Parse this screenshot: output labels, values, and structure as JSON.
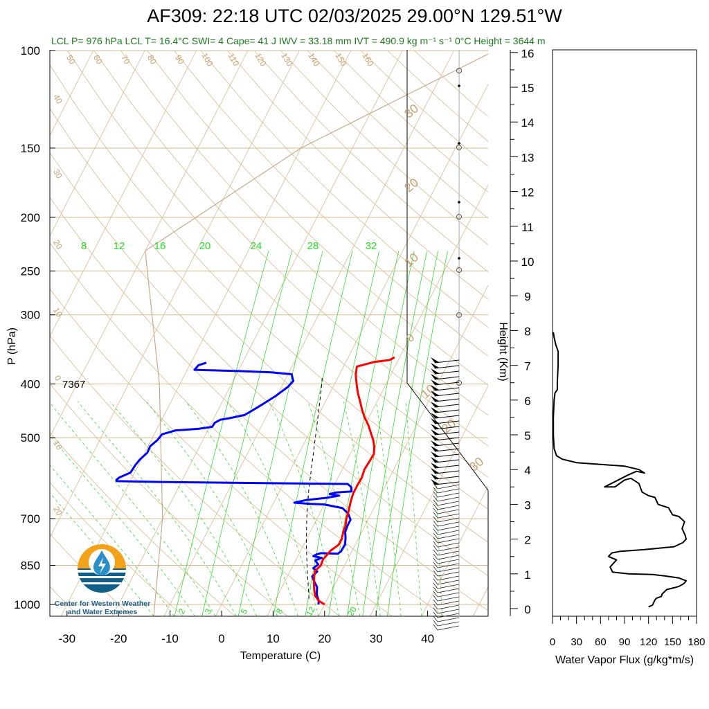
{
  "header": {
    "title": "AF309: 22:18 UTC 02/03/2025  29.00°N 129.51°W",
    "subtitle": "LCL P= 976 hPa  LCL T= 16.4°C  SWI= 4  Cape= 41 J  IWV = 33.18 mm  IVT = 490.9 kg m⁻¹ s⁻¹  0°C Height = 3644 m"
  },
  "logo": {
    "name": "Center for Western Weather and Water Extremes",
    "line1": "Center for Western Weather",
    "line2": "and Water Extremes"
  },
  "colors": {
    "temperature": "#ff0000",
    "dewpoint": "#0000ff",
    "isobar": "#d9b98f",
    "dry_adiabat": "#d9b98f",
    "mixing_ratio": "#33dd33",
    "label_green": "#22dd22",
    "label_tan": "#c8a070"
  },
  "chart_data": [
    {
      "type": "line",
      "name": "skew-t",
      "xlabel": "Temperature (C)",
      "ylabel": "P (hPa)",
      "x_ticks": [
        -30,
        -20,
        -10,
        0,
        10,
        20,
        30,
        40
      ],
      "y_ticks": [
        100,
        150,
        200,
        250,
        300,
        400,
        500,
        700,
        850,
        1000
      ],
      "xlim": [
        -33,
        51
      ],
      "ylim": [
        1050,
        100
      ],
      "y_scale": "log",
      "annotation": "7367",
      "mixing_ratio_labels_top": [
        "8",
        "12",
        "16",
        "20",
        "24",
        "28",
        "32"
      ],
      "mixing_ratio_labels_bottom": [
        "2",
        "3",
        "5",
        "8",
        "12",
        "20"
      ],
      "dry_adiabat_labels_top": [
        "50",
        "60",
        "70",
        "80",
        "90",
        "100",
        "110",
        "120",
        "130",
        "140",
        "150",
        "160"
      ],
      "dry_adiabat_labels_left": [
        "40",
        "30",
        "20",
        "10",
        "0",
        "10",
        "20"
      ],
      "isotherm_labels_right": [
        "30",
        "20",
        "10",
        "0",
        "10",
        "20",
        "30"
      ],
      "series": [
        {
          "name": "temperature",
          "points": [
            [
              20.0,
              1000
            ],
            [
              18.5,
              985
            ],
            [
              17.3,
              965
            ],
            [
              16.5,
              940
            ],
            [
              15.8,
              915
            ],
            [
              15.2,
              890
            ],
            [
              14.8,
              870
            ],
            [
              15.4,
              850
            ],
            [
              15.2,
              830
            ],
            [
              15.8,
              800
            ],
            [
              16.8,
              780
            ],
            [
              16.8,
              760
            ],
            [
              16.4,
              740
            ],
            [
              16.2,
              720
            ],
            [
              15.7,
              700
            ],
            [
              15.4,
              680
            ],
            [
              14.8,
              650
            ],
            [
              14.5,
              630
            ],
            [
              14.5,
              610
            ],
            [
              14.6,
              590
            ],
            [
              14.3,
              570
            ],
            [
              14.5,
              550
            ],
            [
              14.6,
              535
            ],
            [
              14.0,
              520
            ],
            [
              13.1,
              505
            ],
            [
              11.9,
              490
            ],
            [
              10.7,
              475
            ],
            [
              9.2,
              460
            ],
            [
              7.9,
              445
            ],
            [
              6.7,
              430
            ],
            [
              5.4,
              415
            ],
            [
              4.3,
              400
            ],
            [
              3.2,
              385
            ],
            [
              2.6,
              372
            ],
            [
              5.5,
              365
            ],
            [
              8.3,
              362
            ],
            [
              9.0,
              358
            ]
          ]
        },
        {
          "name": "dewpoint",
          "points": [
            [
              18.8,
              1000
            ],
            [
              18.5,
              985
            ],
            [
              17.5,
              960
            ],
            [
              16.8,
              930
            ],
            [
              15.5,
              905
            ],
            [
              14.8,
              890
            ],
            [
              15.3,
              872
            ],
            [
              14.2,
              860
            ],
            [
              14.8,
              847
            ],
            [
              13.8,
              833
            ],
            [
              14.8,
              824
            ],
            [
              13.0,
              818
            ],
            [
              13.5,
              812
            ],
            [
              14.2,
              808
            ],
            [
              17.5,
              810
            ],
            [
              17.9,
              802
            ],
            [
              18.0,
              780
            ],
            [
              17.5,
              760
            ],
            [
              16.8,
              740
            ],
            [
              16.6,
              720
            ],
            [
              16.6,
              703
            ],
            [
              15.5,
              685
            ],
            [
              13.9,
              670
            ],
            [
              10.0,
              660
            ],
            [
              7.0,
              658
            ],
            [
              4.0,
              655
            ],
            [
              6.0,
              648
            ],
            [
              9.8,
              642
            ],
            [
              12.0,
              636
            ],
            [
              10.0,
              632
            ],
            [
              11.0,
              628
            ],
            [
              14.0,
              625
            ],
            [
              13.5,
              614
            ],
            [
              12.5,
              606
            ],
            [
              -10.0,
              603
            ],
            [
              -24.0,
              601
            ],
            [
              -32.6,
              599
            ],
            [
              -32.8,
              596
            ],
            [
              -32.5,
              590
            ],
            [
              -30.8,
              578
            ],
            [
              -30.6,
              560
            ],
            [
              -30.3,
              548
            ],
            [
              -29.5,
              532
            ],
            [
              -29.6,
              518
            ],
            [
              -28.8,
              505
            ],
            [
              -28.5,
              493
            ],
            [
              -26.2,
              485
            ],
            [
              -22.0,
              482
            ],
            [
              -19.5,
              478
            ],
            [
              -19.4,
              470
            ],
            [
              -18.6,
              464
            ],
            [
              -17.0,
              461
            ],
            [
              -14.4,
              455
            ],
            [
              -13.5,
              448
            ],
            [
              -12.3,
              438
            ],
            [
              -10.2,
              420
            ],
            [
              -8.8,
              405
            ],
            [
              -8.3,
              395
            ],
            [
              -9.3,
              384
            ],
            [
              -13.5,
              381
            ],
            [
              -20.0,
              379
            ],
            [
              -28.6,
              377
            ],
            [
              -28.3,
              370
            ],
            [
              -27.0,
              366
            ]
          ]
        },
        {
          "name": "parcel",
          "points": [
            [
              16.4,
              976
            ],
            [
              13.0,
              860
            ],
            [
              10.5,
              780
            ],
            [
              8.0,
              700
            ],
            [
              5.5,
              620
            ],
            [
              3.0,
              540
            ],
            [
              0.5,
              470
            ],
            [
              -2.0,
              410
            ],
            [
              -3.0,
              390
            ]
          ]
        }
      ]
    },
    {
      "type": "line",
      "name": "water-vapor-flux-profile",
      "xlabel": "Water Vapor Flux (g/kg*m/s)",
      "ylabel": "Height (Km)",
      "x_ticks": [
        0,
        30,
        60,
        90,
        120,
        150,
        180
      ],
      "y_ticks": [
        0,
        1,
        2,
        3,
        4,
        5,
        6,
        7,
        8,
        9,
        10,
        11,
        12,
        13,
        14,
        15,
        16
      ],
      "xlim": [
        0,
        180
      ],
      "ylim": [
        0,
        16
      ],
      "series": [
        {
          "name": "water vapor flux",
          "points": [
            [
              120,
              0.05
            ],
            [
              125,
              0.1
            ],
            [
              128,
              0.25
            ],
            [
              130,
              0.3
            ],
            [
              136,
              0.35
            ],
            [
              137,
              0.42
            ],
            [
              143,
              0.55
            ],
            [
              152,
              0.6
            ],
            [
              158,
              0.64
            ],
            [
              162,
              0.69
            ],
            [
              165,
              0.74
            ],
            [
              167,
              0.8
            ],
            [
              158,
              0.88
            ],
            [
              140,
              0.94
            ],
            [
              125,
              0.98
            ],
            [
              95,
              1.0
            ],
            [
              75,
              1.05
            ],
            [
              72,
              1.2
            ],
            [
              80,
              1.4
            ],
            [
              70,
              1.5
            ],
            [
              74,
              1.6
            ],
            [
              85,
              1.65
            ],
            [
              115,
              1.7
            ],
            [
              152,
              1.78
            ],
            [
              163,
              1.9
            ],
            [
              167,
              2.0
            ],
            [
              166,
              2.1
            ],
            [
              162,
              2.3
            ],
            [
              165,
              2.5
            ],
            [
              158,
              2.65
            ],
            [
              150,
              2.7
            ],
            [
              145,
              2.9
            ],
            [
              132,
              3.0
            ],
            [
              128,
              3.2
            ],
            [
              120,
              3.25
            ],
            [
              112,
              3.35
            ],
            [
              108,
              3.6
            ],
            [
              98,
              3.75
            ],
            [
              90,
              3.7
            ],
            [
              78,
              3.5
            ],
            [
              65,
              3.5
            ],
            [
              82,
              3.7
            ],
            [
              95,
              3.85
            ],
            [
              105,
              3.95
            ],
            [
              115,
              3.9
            ],
            [
              108,
              4.0
            ],
            [
              90,
              4.1
            ],
            [
              30,
              4.2
            ],
            [
              12,
              4.3
            ],
            [
              5,
              4.4
            ],
            [
              2,
              4.6
            ],
            [
              1,
              5.0
            ],
            [
              1,
              5.5
            ],
            [
              2,
              6.0
            ],
            [
              3,
              6.2
            ],
            [
              6,
              6.3
            ],
            [
              6,
              6.5
            ],
            [
              7,
              7.0
            ],
            [
              7,
              7.4
            ],
            [
              4,
              7.6
            ],
            [
              2,
              7.8
            ],
            [
              1,
              7.95
            ]
          ]
        }
      ]
    }
  ]
}
